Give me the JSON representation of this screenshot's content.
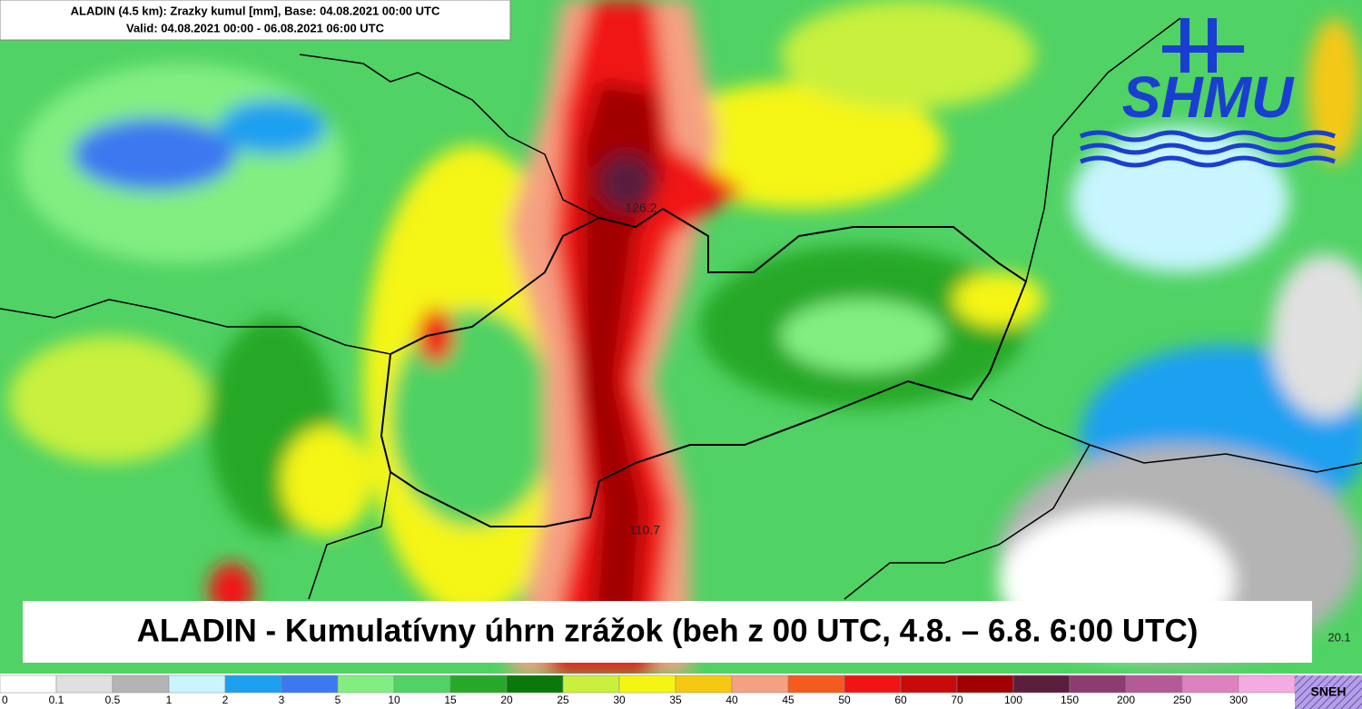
{
  "header": {
    "title": "ALADIN (4.5 km): Zrazky kumul [mm], Base: 04.08.2021 00:00 UTC",
    "valid": "Valid: 04.08.2021 00:00 - 06.08.2021 06:00 UTC"
  },
  "logo": "SHMU",
  "map_labels": [
    "126.2",
    "110.7"
  ],
  "corner_label": "20.1",
  "caption": "ALADIN - Kumulatívny úhrn zrážok (beh z 00 UTC, 4.8. – 6.8. 6:00 UTC)",
  "legend": {
    "items": [
      {
        "label": "0",
        "color": "#ffffff"
      },
      {
        "label": "0.1",
        "color": "#e0e0e0"
      },
      {
        "label": "0.5",
        "color": "#b4b4b4"
      },
      {
        "label": "1",
        "color": "#c8f5ff"
      },
      {
        "label": "2",
        "color": "#1ea0f0"
      },
      {
        "label": "3",
        "color": "#3c78f0"
      },
      {
        "label": "5",
        "color": "#82ee82"
      },
      {
        "label": "10",
        "color": "#50d264"
      },
      {
        "label": "15",
        "color": "#28a828"
      },
      {
        "label": "20",
        "color": "#0a780a"
      },
      {
        "label": "25",
        "color": "#c8f03c"
      },
      {
        "label": "30",
        "color": "#f5f514"
      },
      {
        "label": "35",
        "color": "#f5c814"
      },
      {
        "label": "40",
        "color": "#f5a082"
      },
      {
        "label": "45",
        "color": "#f55a1e"
      },
      {
        "label": "50",
        "color": "#f01414"
      },
      {
        "label": "60",
        "color": "#c80a0a"
      },
      {
        "label": "70",
        "color": "#a00000"
      },
      {
        "label": "100",
        "color": "#5a1e3c"
      },
      {
        "label": "150",
        "color": "#8c3c6e"
      },
      {
        "label": "200",
        "color": "#b45a96"
      },
      {
        "label": "250",
        "color": "#dc82be"
      },
      {
        "label": "300",
        "color": "#f5aae1"
      }
    ],
    "snow": "SNEH"
  }
}
